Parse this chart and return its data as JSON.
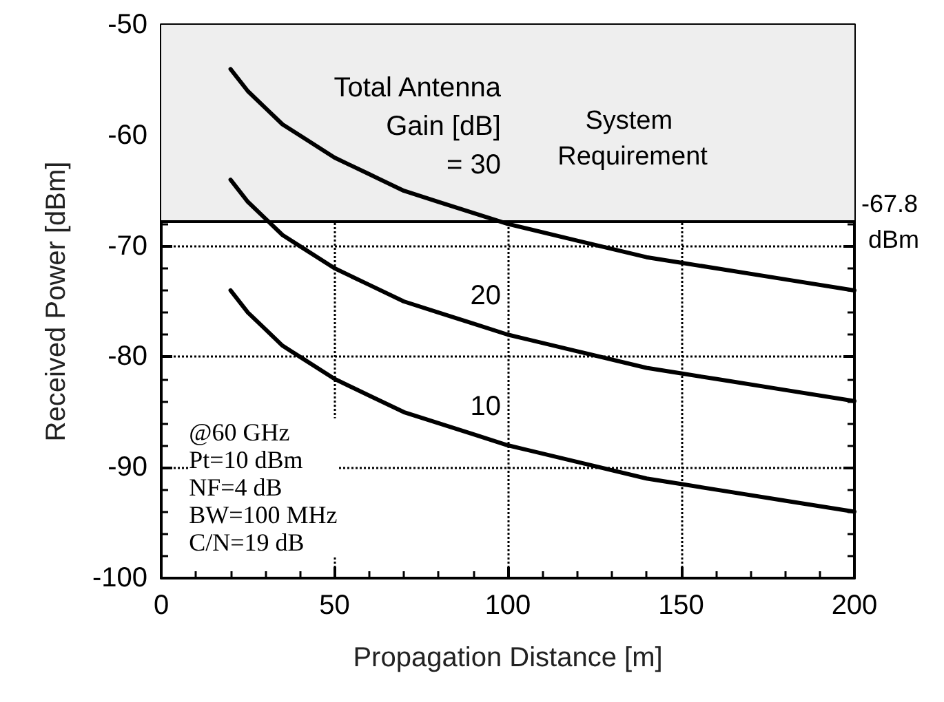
{
  "chart_data": {
    "type": "line",
    "xlabel": "Propagation Distance [m]",
    "ylabel": "Received Power [dBm]",
    "x": [
      20,
      25,
      30,
      35,
      40,
      50,
      60,
      70,
      80,
      90,
      100,
      120,
      140,
      150,
      160,
      180,
      200
    ],
    "series": [
      {
        "color": "#000000",
        "values": [
          -54,
          -56,
          -57.5,
          -59,
          -60,
          -62,
          -63.5,
          -65,
          -66,
          -67,
          -68,
          -69.5,
          -71,
          -71.5,
          -72,
          -73,
          -74
        ]
      },
      {
        "color": "#000000",
        "values": [
          -64,
          -66,
          -67.5,
          -69,
          -70,
          -72,
          -73.5,
          -75,
          -76,
          -77,
          -78,
          -79.5,
          -81,
          -81.5,
          -82,
          -83,
          -84
        ]
      },
      {
        "color": "#000000",
        "values": [
          -74,
          -76,
          -77.5,
          -79,
          -80,
          -82,
          -83.5,
          -85,
          -86,
          -87,
          -88,
          -89.5,
          -91,
          -91.5,
          -92,
          -93,
          -94
        ]
      }
    ],
    "xlim": [
      0,
      200
    ],
    "xticks": [
      0,
      50,
      100,
      150,
      200
    ],
    "ylim": [
      -100,
      -50
    ],
    "yticks": [
      -100,
      -90,
      -80,
      -70,
      -60,
      -50
    ],
    "grid": true,
    "marker": "none",
    "line_style": "solid",
    "ref_lines": [
      {
        "axis": "y",
        "value": -67.8,
        "label": "-67.8 dBm",
        "color": "#000000"
      }
    ],
    "bands": [
      {
        "axis": "y",
        "from": -67.8,
        "to": -50,
        "label": "System Requirement",
        "color": "#eeeeee"
      }
    ],
    "annotations": [
      "Total Antenna\nGain [dB]\n= 30",
      "20",
      "10",
      "@60 GHz\nPt=10 dBm\nNF=4 dB\nBW=100 MHz\nC/N=19 dB"
    ]
  }
}
